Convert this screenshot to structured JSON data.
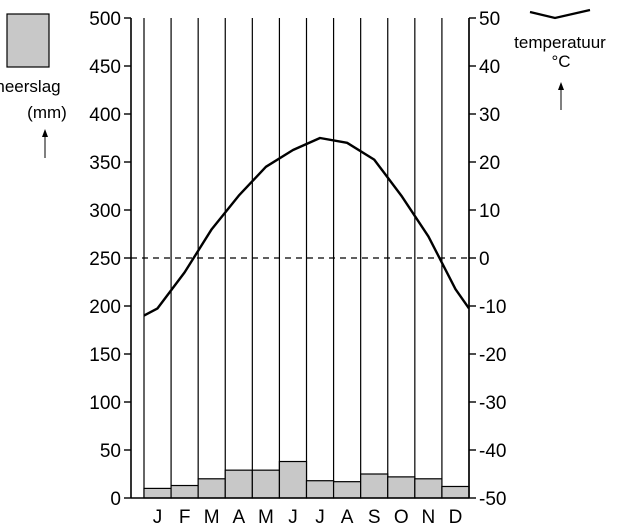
{
  "chart_data": {
    "type": "bar+line",
    "categories": [
      "J",
      "F",
      "M",
      "A",
      "M",
      "J",
      "J",
      "A",
      "S",
      "O",
      "N",
      "D"
    ],
    "precipitation": {
      "label_lines": [
        "neerslag",
        "(mm)"
      ],
      "values": [
        10,
        13,
        20,
        29,
        29,
        38,
        18,
        17,
        25,
        22,
        20,
        12
      ],
      "ylim": [
        0,
        500
      ],
      "ticks": [
        "0",
        "50",
        "100",
        "150",
        "200",
        "250",
        "300",
        "350",
        "400",
        "450",
        "500"
      ],
      "color": "#c8c8c8"
    },
    "temperature": {
      "label_lines": [
        "temperatuur",
        "°C"
      ],
      "x": [
        -0.5,
        0,
        1,
        2,
        3,
        4,
        5,
        6,
        7,
        8,
        9,
        10,
        11,
        11.5
      ],
      "values": [
        -12,
        -10.5,
        -3,
        6,
        13,
        19,
        22.5,
        25,
        24,
        20.5,
        13,
        4.5,
        -6.5,
        -10.5
      ],
      "ylim": [
        -50,
        50
      ],
      "ticks": [
        "-50",
        "-40",
        "-30",
        "-20",
        "-10",
        "0",
        "10",
        "20",
        "30",
        "40",
        "50"
      ],
      "color": "#000000"
    },
    "grid": true,
    "zero_line_dashed": true
  }
}
